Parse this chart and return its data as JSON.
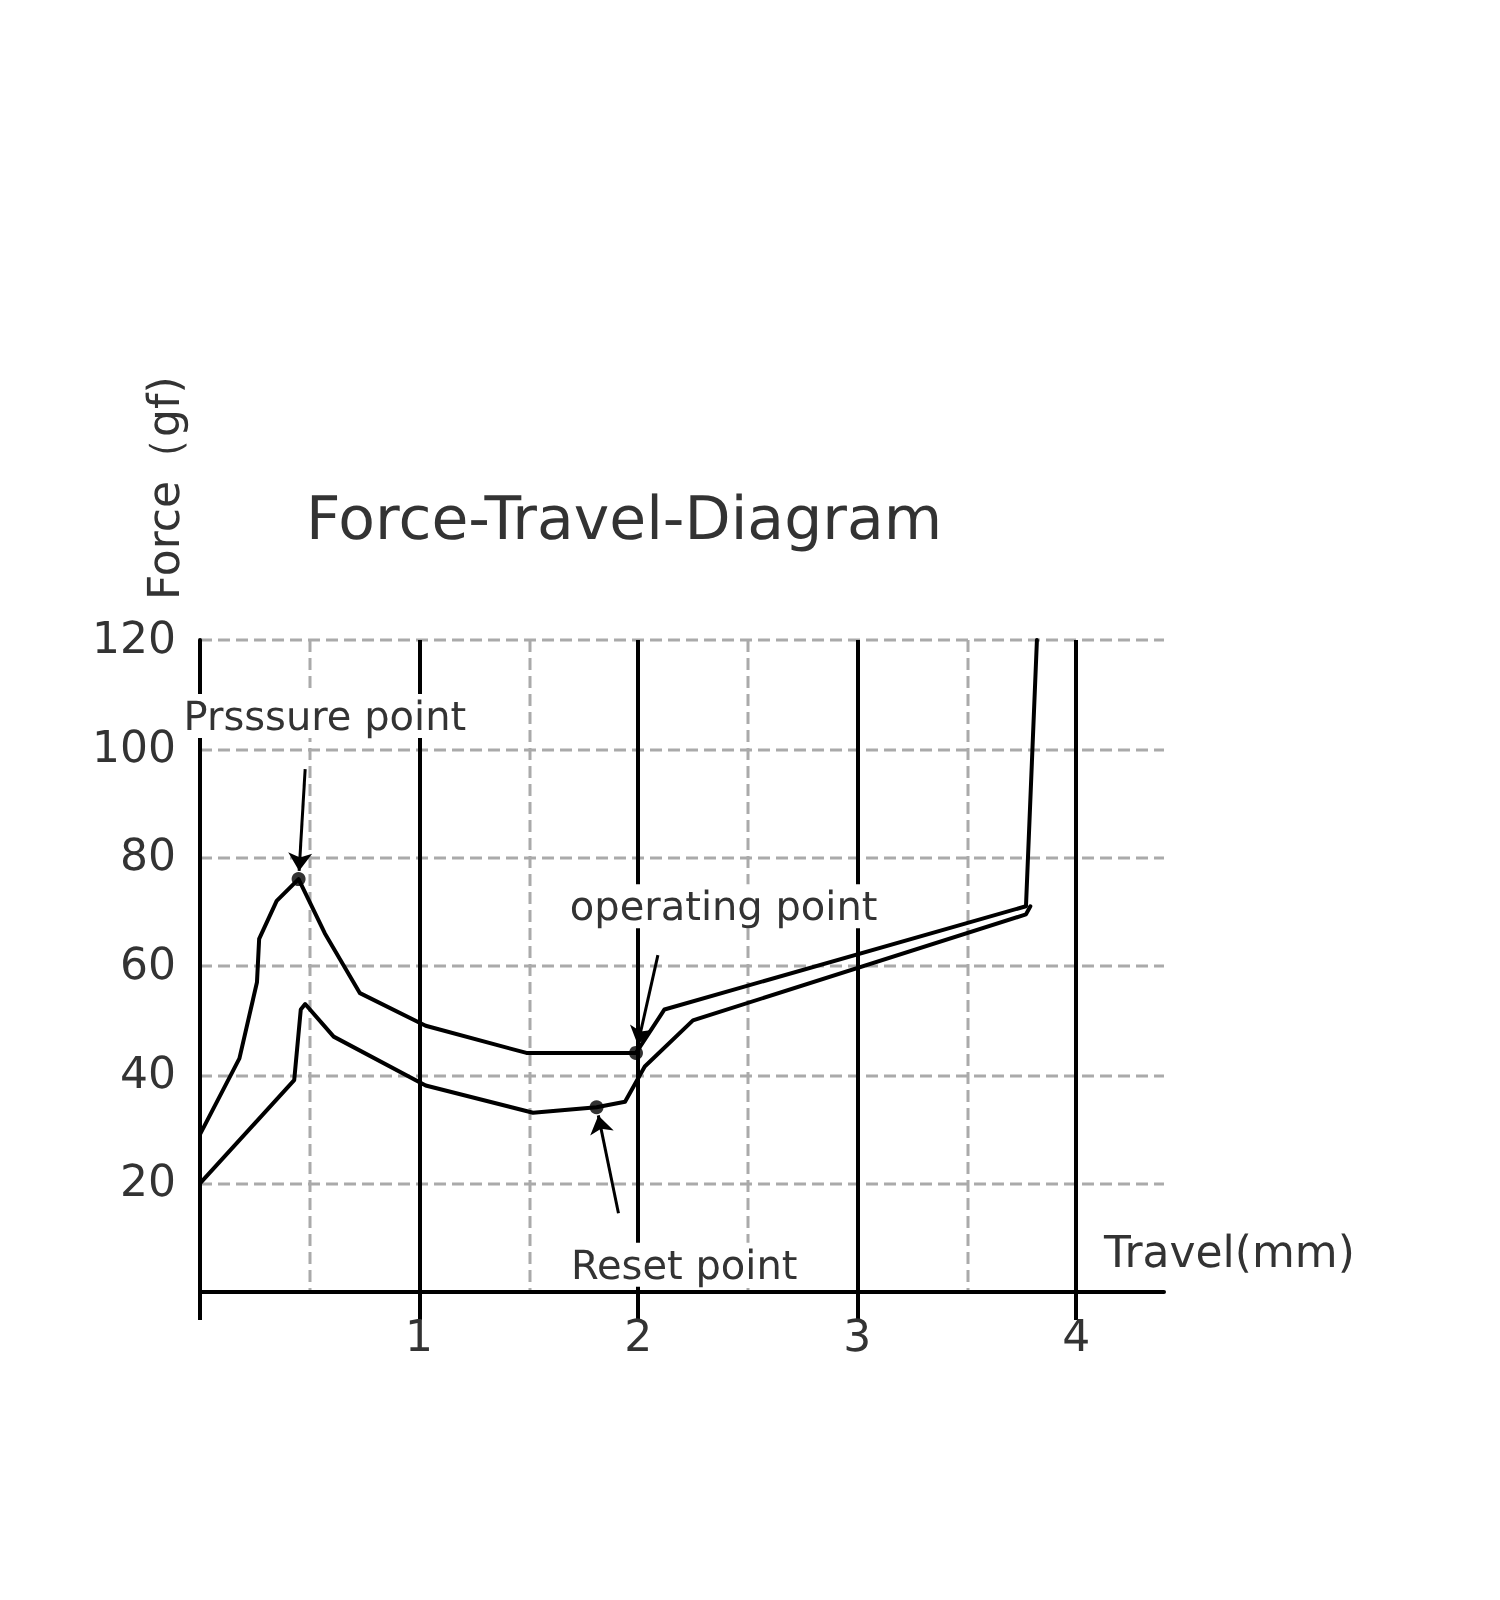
{
  "chart_data": {
    "type": "line",
    "title": "Force-Travel-Diagram",
    "xlabel": "Travel(mm)",
    "ylabel": "Force（gf)",
    "xlim": [
      0,
      4.4
    ],
    "xticks": [
      {
        "value": 0,
        "label": null
      },
      1,
      2,
      3,
      4
    ],
    "ylim": [
      0,
      120
    ],
    "yticks": [
      20,
      40,
      60,
      80,
      100,
      120
    ],
    "grid": true,
    "marker": "none",
    "line_style": "solid",
    "series": [
      {
        "color": "#000000",
        "x": [
          0,
          0.18,
          0.26,
          0.27,
          0.35,
          0.45,
          0.57,
          0.73,
          1.03,
          1.49,
          1.99,
          2.12,
          3.77,
          3.82
        ],
        "values": [
          29,
          43,
          57,
          65,
          72,
          76,
          66,
          55,
          49,
          44,
          44,
          52,
          71,
          120
        ]
      },
      {
        "color": "#000000",
        "x": [
          0,
          0.43,
          0.46,
          0.48,
          0.61,
          1.03,
          1.52,
          1.81,
          1.94,
          2.03,
          2.25,
          3.77,
          3.79
        ],
        "values": [
          20,
          39,
          52,
          53,
          47,
          38,
          33,
          34,
          35,
          41.5,
          50,
          69.5,
          71
        ]
      }
    ],
    "annotations": [
      {
        "text": "Prsssure point",
        "x": 0.45,
        "y": 76
      },
      {
        "text": "operating point",
        "x": 1.99,
        "y": 44
      },
      {
        "text": "Reset point",
        "x": 1.81,
        "y": 34
      }
    ]
  }
}
